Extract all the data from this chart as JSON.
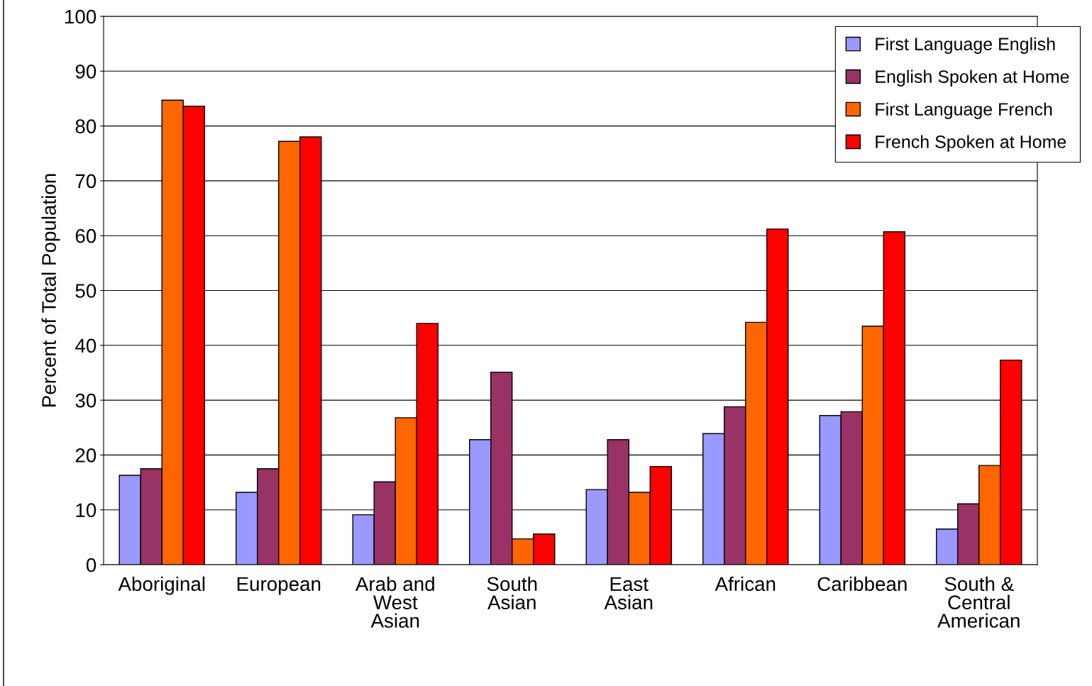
{
  "chart_data": {
    "type": "bar",
    "ylabel": "Percent of Total Population",
    "categories": [
      "Aboriginal",
      "European",
      "Arab and\nWest\nAsian",
      "South\nAsian",
      "East\nAsian",
      "African",
      "Caribbean",
      "South &\nCentral\nAmerican"
    ],
    "series": [
      {
        "name": "First Language English",
        "color": "#9999ff",
        "values": [
          16.3,
          13.2,
          9.1,
          22.8,
          13.7,
          23.9,
          27.2,
          6.5
        ]
      },
      {
        "name": "English Spoken at Home",
        "color": "#993366",
        "values": [
          17.5,
          17.5,
          15.1,
          35.1,
          22.8,
          28.8,
          27.9,
          11.1
        ]
      },
      {
        "name": "First Language French",
        "color": "#ff6600",
        "values": [
          84.7,
          77.2,
          26.8,
          4.7,
          13.2,
          44.2,
          43.5,
          18.1
        ]
      },
      {
        "name": "French Spoken at Home",
        "color": "#ff0000",
        "values": [
          83.6,
          78.0,
          44.0,
          5.6,
          17.9,
          61.2,
          60.7,
          37.3
        ]
      }
    ],
    "ylim": [
      0,
      100
    ],
    "yticks": [
      0,
      10,
      20,
      30,
      40,
      50,
      60,
      70,
      80,
      90,
      100
    ],
    "grid": "y",
    "legend": "top right"
  }
}
